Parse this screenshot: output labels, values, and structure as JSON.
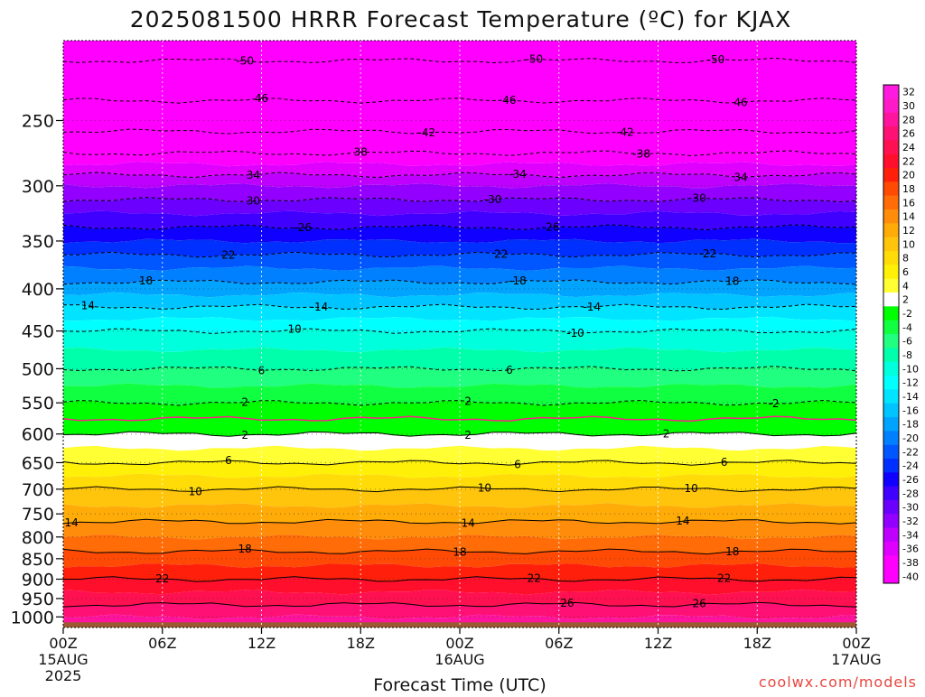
{
  "chart_data": {
    "type": "heatmap",
    "title": "2025081500 HRRR Forecast Temperature (ºC) for KJAX",
    "xlabel": "Forecast Time (UTC)",
    "ylabel": "",
    "credit": "coolwx.com/models",
    "x_ticks": [
      {
        "hour": 0,
        "label": "00Z",
        "sub": "15AUG",
        "sub2": "2025"
      },
      {
        "hour": 6,
        "label": "06Z",
        "sub": "",
        "sub2": ""
      },
      {
        "hour": 12,
        "label": "12Z",
        "sub": "",
        "sub2": ""
      },
      {
        "hour": 18,
        "label": "18Z",
        "sub": "",
        "sub2": ""
      },
      {
        "hour": 24,
        "label": "00Z",
        "sub": "16AUG",
        "sub2": ""
      },
      {
        "hour": 30,
        "label": "06Z",
        "sub": "",
        "sub2": ""
      },
      {
        "hour": 36,
        "label": "12Z",
        "sub": "",
        "sub2": ""
      },
      {
        "hour": 42,
        "label": "18Z",
        "sub": "",
        "sub2": ""
      },
      {
        "hour": 48,
        "label": "00Z",
        "sub": "17AUG",
        "sub2": ""
      }
    ],
    "xlim": [
      0,
      48
    ],
    "y_ticks": [
      250,
      300,
      350,
      400,
      450,
      500,
      550,
      600,
      650,
      700,
      750,
      800,
      850,
      900,
      950,
      1000
    ],
    "ylim": [
      200,
      1030
    ],
    "y_scale": "log",
    "colorbar": {
      "levels": [
        32,
        30,
        28,
        26,
        24,
        22,
        20,
        18,
        16,
        14,
        12,
        10,
        8,
        6,
        4,
        2,
        -2,
        -4,
        -6,
        -8,
        -10,
        -12,
        -14,
        -16,
        -18,
        -20,
        -22,
        -24,
        -26,
        -28,
        -30,
        -32,
        -34,
        -36,
        -38,
        -40
      ],
      "colors": [
        "#ff1adf",
        "#ff1ac8",
        "#ff149e",
        "#ff1075",
        "#ff1050",
        "#ff0f2c",
        "#ff1f0a",
        "#ff4a06",
        "#ff6c08",
        "#ff8c0a",
        "#ffab08",
        "#ffc40c",
        "#ffdc08",
        "#fff008",
        "#ffff33",
        "#ffffff",
        "#00ff00",
        "#10ff40",
        "#20ff80",
        "#00ffaa",
        "#00ffdd",
        "#00ffff",
        "#00e4ff",
        "#00c4ff",
        "#00a4ff",
        "#0080ff",
        "#0056ff",
        "#0030ff",
        "#1000ff",
        "#4000ff",
        "#6c00ff",
        "#9400ff",
        "#bf00ff",
        "#e000ff",
        "#ff00ff",
        "#ff00ff"
      ]
    },
    "temperature_profile": [
      {
        "p": 200,
        "t": -52
      },
      {
        "p": 250,
        "t": -44
      },
      {
        "p": 300,
        "t": -32
      },
      {
        "p": 350,
        "t": -24
      },
      {
        "p": 400,
        "t": -17
      },
      {
        "p": 450,
        "t": -10
      },
      {
        "p": 500,
        "t": -6
      },
      {
        "p": 550,
        "t": -2
      },
      {
        "p": 575,
        "t": 0
      },
      {
        "p": 600,
        "t": 2
      },
      {
        "p": 650,
        "t": 6
      },
      {
        "p": 700,
        "t": 10
      },
      {
        "p": 750,
        "t": 13
      },
      {
        "p": 800,
        "t": 16
      },
      {
        "p": 850,
        "t": 19
      },
      {
        "p": 900,
        "t": 22
      },
      {
        "p": 950,
        "t": 25
      },
      {
        "p": 1000,
        "t": 28
      }
    ],
    "contours": [
      {
        "value": -50,
        "labels": [
          {
            "x": 11,
            "text": "-50"
          },
          {
            "x": 28.5,
            "text": "-50"
          },
          {
            "x": 39.5,
            "text": "-50"
          }
        ]
      },
      {
        "value": -46,
        "labels": [
          {
            "x": 12,
            "text": "46"
          },
          {
            "x": 27,
            "text": "46"
          },
          {
            "x": 41,
            "text": "46"
          }
        ]
      },
      {
        "value": -42,
        "labels": [
          {
            "x": 22,
            "text": "-42"
          },
          {
            "x": 34,
            "text": "-42"
          }
        ]
      },
      {
        "value": -38,
        "labels": [
          {
            "x": 18,
            "text": "38"
          },
          {
            "x": 35,
            "text": "-38"
          }
        ]
      },
      {
        "value": -34,
        "labels": [
          {
            "x": 11.5,
            "text": "34"
          },
          {
            "x": 27.5,
            "text": "-34"
          },
          {
            "x": 41,
            "text": "34"
          }
        ]
      },
      {
        "value": -30,
        "labels": [
          {
            "x": 11.5,
            "text": "30"
          },
          {
            "x": 26,
            "text": "-30"
          },
          {
            "x": 38.5,
            "text": "30"
          }
        ]
      },
      {
        "value": -26,
        "labels": [
          {
            "x": 14.5,
            "text": "-26"
          },
          {
            "x": 29.5,
            "text": "-26"
          }
        ]
      },
      {
        "value": -22,
        "labels": [
          {
            "x": 10,
            "text": "22"
          },
          {
            "x": 26.5,
            "text": "22"
          },
          {
            "x": 39,
            "text": "-22"
          }
        ]
      },
      {
        "value": -18,
        "labels": [
          {
            "x": 5,
            "text": "18"
          },
          {
            "x": 27.5,
            "text": "-18"
          },
          {
            "x": 40.5,
            "text": "18"
          }
        ]
      },
      {
        "value": -14,
        "labels": [
          {
            "x": 1.5,
            "text": "14"
          },
          {
            "x": 15.5,
            "text": "-14"
          },
          {
            "x": 32,
            "text": "-14"
          }
        ]
      },
      {
        "value": -10,
        "labels": [
          {
            "x": 14,
            "text": "10"
          },
          {
            "x": 31,
            "text": "-10"
          }
        ]
      },
      {
        "value": -6,
        "labels": [
          {
            "x": 12,
            "text": "6"
          },
          {
            "x": 27,
            "text": "6"
          }
        ]
      },
      {
        "value": -2,
        "labels": [
          {
            "x": 11,
            "text": "2"
          },
          {
            "x": 24.5,
            "text": "2"
          },
          {
            "x": 43,
            "text": "-2"
          }
        ]
      },
      {
        "value": 0,
        "labels": []
      },
      {
        "value": 2,
        "labels": [
          {
            "x": 11,
            "text": "2"
          },
          {
            "x": 24.5,
            "text": "2"
          },
          {
            "x": 36.5,
            "text": "2"
          }
        ]
      },
      {
        "value": 6,
        "labels": [
          {
            "x": 10,
            "text": "6"
          },
          {
            "x": 27.5,
            "text": "6"
          },
          {
            "x": 40,
            "text": "6"
          }
        ]
      },
      {
        "value": 10,
        "labels": [
          {
            "x": 8,
            "text": "10"
          },
          {
            "x": 25.5,
            "text": "10"
          },
          {
            "x": 38,
            "text": "10"
          }
        ]
      },
      {
        "value": 14,
        "labels": [
          {
            "x": 0.5,
            "text": "14"
          },
          {
            "x": 24.5,
            "text": "14"
          },
          {
            "x": 37.5,
            "text": "14"
          }
        ]
      },
      {
        "value": 18,
        "labels": [
          {
            "x": 11,
            "text": "18"
          },
          {
            "x": 24,
            "text": "18"
          },
          {
            "x": 40.5,
            "text": "18"
          }
        ]
      },
      {
        "value": 22,
        "labels": [
          {
            "x": 6,
            "text": "22"
          },
          {
            "x": 28.5,
            "text": "22"
          },
          {
            "x": 40,
            "text": "22"
          }
        ]
      },
      {
        "value": 26,
        "labels": [
          {
            "x": 30.5,
            "text": "26"
          },
          {
            "x": 38.5,
            "text": "26"
          }
        ]
      }
    ],
    "grid": true,
    "legend": "right"
  }
}
